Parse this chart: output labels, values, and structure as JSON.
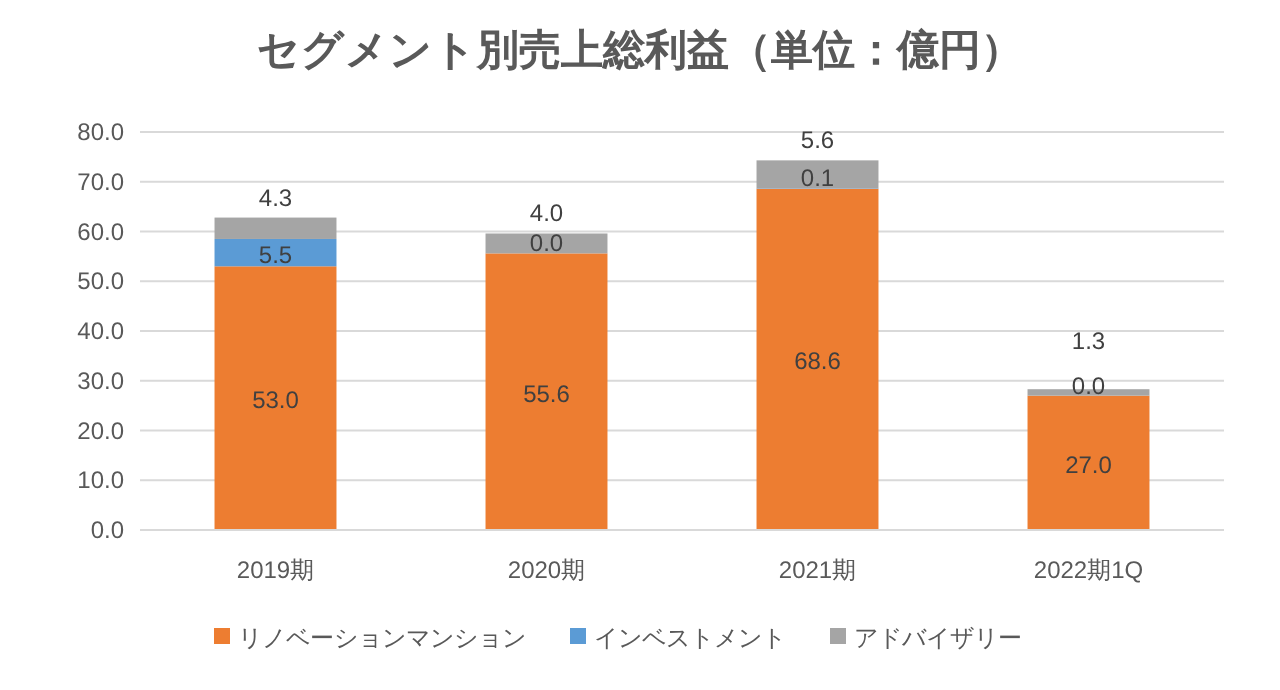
{
  "chart_data": {
    "type": "bar",
    "stacked": true,
    "title": "セグメント別売上総利益（単位：億円）",
    "categories": [
      "2019期",
      "2020期",
      "2021期",
      "2022期1Q"
    ],
    "series": [
      {
        "name": "リノベーションマンション",
        "color": "#ed7d31",
        "values": [
          53.0,
          55.6,
          68.6,
          27.0
        ],
        "value_labels": [
          "53.0",
          "55.6",
          "68.6",
          "27.0"
        ]
      },
      {
        "name": "インベストメント",
        "color": "#5b9bd5",
        "values": [
          5.5,
          0.0,
          0.1,
          0.0
        ],
        "value_labels": [
          "5.5",
          "0.0",
          "0.1",
          "0.0"
        ]
      },
      {
        "name": "アドバイザリー",
        "color": "#a5a5a5",
        "values": [
          4.3,
          4.0,
          5.6,
          1.3
        ],
        "value_labels": [
          "4.3",
          "4.0",
          "5.6",
          "1.3"
        ]
      }
    ],
    "ylim": [
      0,
      80
    ],
    "yticks": [
      {
        "value": 0,
        "label": "0.0"
      },
      {
        "value": 10,
        "label": "10.0"
      },
      {
        "value": 20,
        "label": "20.0"
      },
      {
        "value": 30,
        "label": "30.0"
      },
      {
        "value": 40,
        "label": "40.0"
      },
      {
        "value": 50,
        "label": "50.0"
      },
      {
        "value": 60,
        "label": "60.0"
      },
      {
        "value": 70,
        "label": "70.0"
      },
      {
        "value": 80,
        "label": "80.0"
      }
    ],
    "grid": "y",
    "legend": "bottom"
  }
}
